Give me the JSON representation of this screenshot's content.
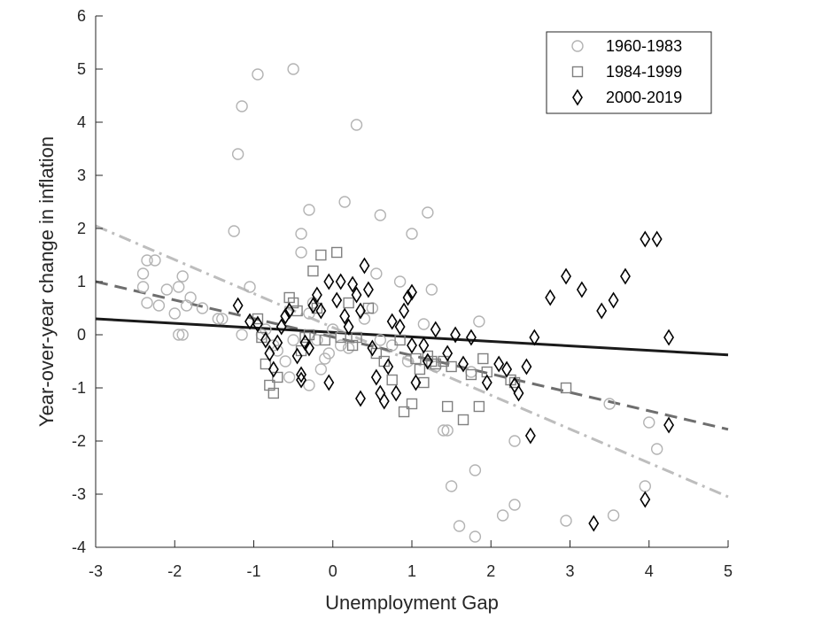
{
  "chart_data": {
    "type": "scatter",
    "title": "",
    "xlabel": "Unemployment Gap",
    "ylabel": "Year-over-year change in inflation",
    "xlim": [
      -3,
      5
    ],
    "ylim": [
      -4,
      6
    ],
    "xticks": [
      -3,
      -2,
      -1,
      0,
      1,
      2,
      3,
      4,
      5
    ],
    "yticks": [
      -4,
      -3,
      -2,
      -1,
      0,
      1,
      2,
      3,
      4,
      5,
      6
    ],
    "grid": false,
    "legend_position": "top-right",
    "series": [
      {
        "name": "1960-1983",
        "marker": "circle",
        "color": "#b3b3b3",
        "points": [
          [
            -2.4,
            1.15
          ],
          [
            -2.35,
            1.4
          ],
          [
            -2.25,
            1.4
          ],
          [
            -2.4,
            0.9
          ],
          [
            -2.35,
            0.6
          ],
          [
            -2.2,
            0.55
          ],
          [
            -2.1,
            0.85
          ],
          [
            -2.0,
            0.4
          ],
          [
            -1.95,
            0.9
          ],
          [
            -1.9,
            1.1
          ],
          [
            -1.95,
            0.0
          ],
          [
            -1.9,
            0.0
          ],
          [
            -1.85,
            0.55
          ],
          [
            -1.8,
            0.7
          ],
          [
            -1.65,
            0.5
          ],
          [
            -1.45,
            0.3
          ],
          [
            -1.4,
            0.3
          ],
          [
            -1.25,
            1.95
          ],
          [
            -1.2,
            3.4
          ],
          [
            -1.15,
            4.3
          ],
          [
            -1.15,
            0.0
          ],
          [
            -1.05,
            0.9
          ],
          [
            -0.95,
            4.9
          ],
          [
            -0.9,
            0.0
          ],
          [
            -0.85,
            0.1
          ],
          [
            -0.75,
            -0.2
          ],
          [
            -0.7,
            -0.3
          ],
          [
            -0.6,
            -0.5
          ],
          [
            -0.55,
            -0.8
          ],
          [
            -0.5,
            5.0
          ],
          [
            -0.5,
            -0.1
          ],
          [
            -0.4,
            1.55
          ],
          [
            -0.4,
            1.9
          ],
          [
            -0.3,
            2.35
          ],
          [
            -0.3,
            -0.95
          ],
          [
            -0.3,
            0.4
          ],
          [
            -0.25,
            0.6
          ],
          [
            -0.2,
            -0.1
          ],
          [
            -0.15,
            -0.65
          ],
          [
            -0.1,
            -0.45
          ],
          [
            -0.05,
            -0.35
          ],
          [
            0.0,
            0.1
          ],
          [
            0.1,
            -0.2
          ],
          [
            0.15,
            2.5
          ],
          [
            0.2,
            -0.25
          ],
          [
            0.3,
            3.95
          ],
          [
            0.4,
            0.3
          ],
          [
            0.5,
            0.5
          ],
          [
            0.55,
            1.15
          ],
          [
            0.6,
            -0.1
          ],
          [
            0.6,
            2.25
          ],
          [
            0.75,
            -0.2
          ],
          [
            0.85,
            1.0
          ],
          [
            0.95,
            -0.5
          ],
          [
            1.0,
            1.9
          ],
          [
            1.15,
            0.2
          ],
          [
            1.2,
            2.3
          ],
          [
            1.25,
            0.85
          ],
          [
            1.3,
            -0.6
          ],
          [
            1.4,
            -1.8
          ],
          [
            1.45,
            -1.8
          ],
          [
            1.5,
            -2.85
          ],
          [
            1.6,
            -3.6
          ],
          [
            1.75,
            -0.7
          ],
          [
            1.8,
            -2.55
          ],
          [
            1.8,
            -3.8
          ],
          [
            1.85,
            0.25
          ],
          [
            2.15,
            -3.4
          ],
          [
            2.3,
            -2.0
          ],
          [
            2.3,
            -3.2
          ],
          [
            2.95,
            -3.5
          ],
          [
            3.5,
            -1.3
          ],
          [
            3.55,
            -3.4
          ],
          [
            3.95,
            -2.85
          ],
          [
            4.0,
            -1.65
          ],
          [
            4.1,
            -2.15
          ]
        ]
      },
      {
        "name": "1984-1999",
        "marker": "square",
        "color": "#808080",
        "points": [
          [
            -0.95,
            0.3
          ],
          [
            -0.9,
            -0.05
          ],
          [
            -0.85,
            -0.55
          ],
          [
            -0.8,
            -0.95
          ],
          [
            -0.75,
            -1.1
          ],
          [
            -0.7,
            -0.8
          ],
          [
            -0.55,
            0.7
          ],
          [
            -0.5,
            0.6
          ],
          [
            -0.45,
            0.45
          ],
          [
            -0.4,
            -0.3
          ],
          [
            -0.35,
            -0.05
          ],
          [
            -0.3,
            0.0
          ],
          [
            -0.25,
            1.2
          ],
          [
            -0.2,
            0.5
          ],
          [
            -0.15,
            1.5
          ],
          [
            -0.1,
            -0.1
          ],
          [
            0.05,
            1.55
          ],
          [
            0.1,
            -0.05
          ],
          [
            0.2,
            0.6
          ],
          [
            0.25,
            -0.2
          ],
          [
            0.3,
            -0.05
          ],
          [
            0.45,
            0.5
          ],
          [
            0.55,
            -0.35
          ],
          [
            0.65,
            -0.5
          ],
          [
            0.75,
            -0.85
          ],
          [
            0.85,
            -0.1
          ],
          [
            0.9,
            -1.45
          ],
          [
            1.0,
            -1.3
          ],
          [
            1.05,
            -0.45
          ],
          [
            1.1,
            -0.65
          ],
          [
            1.15,
            -0.9
          ],
          [
            1.2,
            -0.4
          ],
          [
            1.25,
            -0.5
          ],
          [
            1.3,
            -0.55
          ],
          [
            1.4,
            -0.5
          ],
          [
            1.45,
            -1.35
          ],
          [
            1.5,
            -0.6
          ],
          [
            1.65,
            -1.6
          ],
          [
            1.75,
            -0.75
          ],
          [
            1.85,
            -1.35
          ],
          [
            1.9,
            -0.45
          ],
          [
            1.95,
            -0.7
          ],
          [
            2.25,
            -0.85
          ],
          [
            2.3,
            -0.9
          ],
          [
            2.95,
            -1.0
          ]
        ]
      },
      {
        "name": "2000-2019",
        "marker": "diamond",
        "color": "#000000",
        "points": [
          [
            -1.2,
            0.55
          ],
          [
            -1.05,
            0.25
          ],
          [
            -0.95,
            0.2
          ],
          [
            -0.85,
            -0.1
          ],
          [
            -0.8,
            -0.35
          ],
          [
            -0.75,
            -0.65
          ],
          [
            -0.7,
            -0.15
          ],
          [
            -0.65,
            0.15
          ],
          [
            -0.6,
            0.35
          ],
          [
            -0.55,
            0.45
          ],
          [
            -0.45,
            -0.4
          ],
          [
            -0.4,
            -0.75
          ],
          [
            -0.4,
            -0.85
          ],
          [
            -0.35,
            -0.15
          ],
          [
            -0.3,
            -0.25
          ],
          [
            -0.25,
            0.55
          ],
          [
            -0.2,
            0.75
          ],
          [
            -0.15,
            0.45
          ],
          [
            -0.05,
            1.0
          ],
          [
            -0.05,
            -0.9
          ],
          [
            0.05,
            0.65
          ],
          [
            0.1,
            1.0
          ],
          [
            0.15,
            0.35
          ],
          [
            0.2,
            0.15
          ],
          [
            0.25,
            0.95
          ],
          [
            0.3,
            0.75
          ],
          [
            0.35,
            0.45
          ],
          [
            0.35,
            -1.2
          ],
          [
            0.4,
            1.3
          ],
          [
            0.45,
            0.85
          ],
          [
            0.5,
            -0.25
          ],
          [
            0.55,
            -0.8
          ],
          [
            0.6,
            -1.1
          ],
          [
            0.65,
            -1.25
          ],
          [
            0.7,
            -0.6
          ],
          [
            0.75,
            0.25
          ],
          [
            0.8,
            -1.1
          ],
          [
            0.85,
            0.15
          ],
          [
            0.9,
            0.45
          ],
          [
            0.95,
            0.7
          ],
          [
            1.0,
            0.8
          ],
          [
            1.0,
            -0.2
          ],
          [
            1.05,
            -0.9
          ],
          [
            1.15,
            -0.2
          ],
          [
            1.2,
            -0.5
          ],
          [
            1.3,
            0.1
          ],
          [
            1.45,
            -0.35
          ],
          [
            1.55,
            0.0
          ],
          [
            1.65,
            -0.55
          ],
          [
            1.75,
            -0.05
          ],
          [
            1.95,
            -0.9
          ],
          [
            2.1,
            -0.55
          ],
          [
            2.2,
            -0.65
          ],
          [
            2.3,
            -0.95
          ],
          [
            2.35,
            -1.1
          ],
          [
            2.45,
            -0.6
          ],
          [
            2.5,
            -1.9
          ],
          [
            2.55,
            -0.05
          ],
          [
            2.75,
            0.7
          ],
          [
            2.95,
            1.1
          ],
          [
            3.15,
            0.85
          ],
          [
            3.3,
            -3.55
          ],
          [
            3.4,
            0.45
          ],
          [
            3.55,
            0.65
          ],
          [
            3.7,
            1.1
          ],
          [
            3.95,
            1.8
          ],
          [
            3.95,
            -3.1
          ],
          [
            4.1,
            1.8
          ],
          [
            4.25,
            -0.05
          ],
          [
            4.25,
            -1.7
          ]
        ]
      }
    ],
    "fit_lines": [
      {
        "series": "1960-1983",
        "style": "dash-dot",
        "color": "#bdbdbd",
        "x": [
          -3,
          5
        ],
        "y": [
          2.05,
          -3.05
        ]
      },
      {
        "series": "1984-1999",
        "style": "dashed",
        "color": "#6e6e6e",
        "x": [
          -3,
          5
        ],
        "y": [
          1.0,
          -1.78
        ]
      },
      {
        "series": "2000-2019",
        "style": "solid",
        "color": "#1a1a1a",
        "x": [
          -3,
          5
        ],
        "y": [
          0.3,
          -0.38
        ]
      }
    ]
  }
}
